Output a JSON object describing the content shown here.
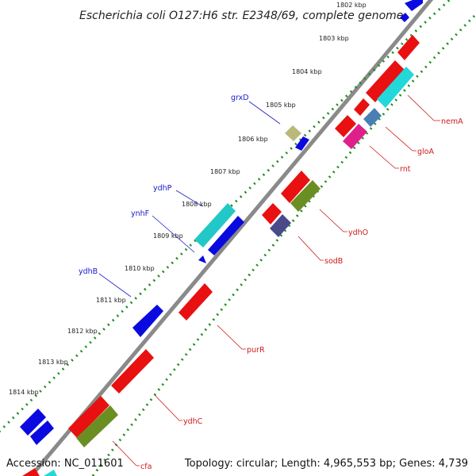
{
  "title": "Escherichia coli O127:H6 str. E2348/69, complete genome",
  "accession": "Accession: NC_011601",
  "topology": "Topology: circular; Length: 4,965,553 bp; Genes: 4,739",
  "colors": {
    "backbone": "#8c8c8c",
    "ticks": "#1f8a1f",
    "forward_label": "#1a1acc",
    "reverse_label": "#cc1a1a"
  },
  "kbp_labels": [
    {
      "text": "1802 kbp",
      "kbp": 1802
    },
    {
      "text": "1803 kbp",
      "kbp": 1803
    },
    {
      "text": "1804 kbp",
      "kbp": 1804
    },
    {
      "text": "1805 kbp",
      "kbp": 1805
    },
    {
      "text": "1806 kbp",
      "kbp": 1806
    },
    {
      "text": "1807 kbp",
      "kbp": 1807
    },
    {
      "text": "1808 kbp",
      "kbp": 1808
    },
    {
      "text": "1809 kbp",
      "kbp": 1809
    },
    {
      "text": "1810 kbp",
      "kbp": 1810
    },
    {
      "text": "1811 kbp",
      "kbp": 1811
    },
    {
      "text": "1812 kbp",
      "kbp": 1812
    },
    {
      "text": "1813 kbp",
      "kbp": 1813
    },
    {
      "text": "1814 kbp",
      "kbp": 1814
    }
  ],
  "gene_labels": [
    {
      "name": "grxD",
      "strand": "forward"
    },
    {
      "name": "ydhP",
      "strand": "forward"
    },
    {
      "name": "ynhF",
      "strand": "forward"
    },
    {
      "name": "ydhB",
      "strand": "forward"
    },
    {
      "name": "nemA",
      "strand": "reverse"
    },
    {
      "name": "gloA",
      "strand": "reverse"
    },
    {
      "name": "rnt",
      "strand": "reverse"
    },
    {
      "name": "ydhO",
      "strand": "reverse"
    },
    {
      "name": "sodB",
      "strand": "reverse"
    },
    {
      "name": "purR",
      "strand": "reverse"
    },
    {
      "name": "ydhC",
      "strand": "reverse"
    },
    {
      "name": "cfa",
      "strand": "reverse"
    }
  ],
  "features": [
    {
      "strand": "forward",
      "color": "#0a0ae0",
      "name": "gene"
    },
    {
      "strand": "forward",
      "color": "#0a0ae0",
      "name": "gene"
    },
    {
      "strand": "forward",
      "color": "#b9b97a",
      "name": "grxD"
    },
    {
      "strand": "forward",
      "color": "#22c8c8",
      "name": "ydhP"
    },
    {
      "strand": "forward",
      "color": "#0a0ae0",
      "name": "ydhP"
    },
    {
      "strand": "forward",
      "color": "#0a0ae0",
      "name": "ynhF"
    },
    {
      "strand": "forward",
      "color": "#0a0ae0",
      "name": "ydhB"
    },
    {
      "strand": "forward",
      "color": "#0a0ae0",
      "name": "gene"
    },
    {
      "strand": "forward",
      "color": "#0a0ae0",
      "name": "gene"
    },
    {
      "strand": "reverse",
      "color": "#e81010",
      "name": "gene"
    },
    {
      "strand": "reverse",
      "color": "#e81010",
      "name": "gene"
    },
    {
      "strand": "reverse",
      "color": "#22d8d8",
      "name": "nemA"
    },
    {
      "strand": "reverse",
      "color": "#e81010",
      "name": "gene"
    },
    {
      "strand": "reverse",
      "color": "#4a7fb5",
      "name": "gloA"
    },
    {
      "strand": "reverse",
      "color": "#e81010",
      "name": "gene"
    },
    {
      "strand": "reverse",
      "color": "#e0208a",
      "name": "rnt"
    },
    {
      "strand": "reverse",
      "color": "#e81010",
      "name": "gene"
    },
    {
      "strand": "reverse",
      "color": "#6b8e23",
      "name": "ydhO"
    },
    {
      "strand": "reverse",
      "color": "#e81010",
      "name": "gene"
    },
    {
      "strand": "reverse",
      "color": "#4a4a8a",
      "name": "sodB"
    },
    {
      "strand": "reverse",
      "color": "#e81010",
      "name": "purR"
    },
    {
      "strand": "reverse",
      "color": "#e81010",
      "name": "ydhC"
    },
    {
      "strand": "reverse",
      "color": "#e81010",
      "name": "gene"
    },
    {
      "strand": "reverse",
      "color": "#6b8e23",
      "name": "cfa"
    }
  ]
}
